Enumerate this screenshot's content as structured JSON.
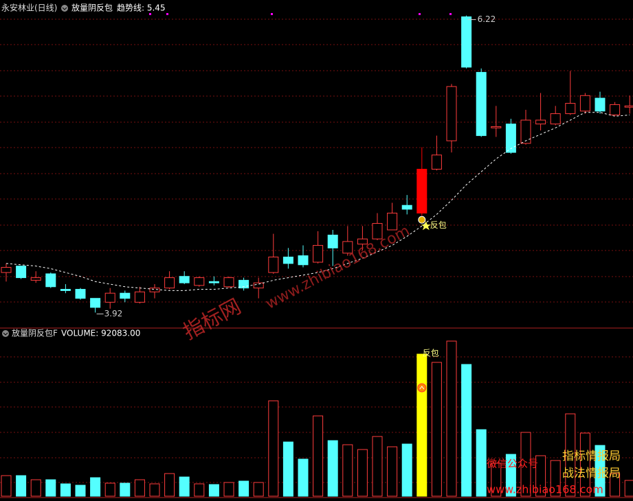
{
  "chart_data": [
    {
      "type": "candlestick",
      "title": "永安林业(日线)",
      "indicator": "放量阴反包",
      "trend_readout": "趋势线: 5.45",
      "open": [
        4.23,
        4.28,
        4.17,
        4.22,
        4.1,
        4.1,
        4.03,
        4.0,
        4.07,
        4.0,
        4.08,
        4.11,
        4.2,
        4.13,
        4.16,
        4.12,
        4.17,
        4.11,
        4.23,
        4.35,
        4.36,
        4.31,
        4.52,
        4.38,
        4.45,
        4.49,
        4.56,
        4.75,
        4.69,
        5.03,
        5.25,
        6.21,
        5.78,
        5.35,
        5.38,
        5.23,
        5.38,
        5.38,
        5.46,
        5.48,
        5.58,
        5.45,
        5.51
      ],
      "high": [
        4.3,
        4.28,
        4.24,
        4.23,
        4.14,
        4.11,
        4.03,
        4.11,
        4.09,
        4.12,
        4.14,
        4.24,
        4.24,
        4.2,
        4.2,
        4.2,
        4.19,
        4.19,
        4.53,
        4.42,
        4.44,
        4.55,
        4.56,
        4.59,
        4.59,
        4.69,
        4.77,
        4.83,
        5.2,
        5.29,
        5.69,
        6.22,
        5.81,
        5.52,
        5.42,
        5.49,
        5.62,
        5.52,
        5.79,
        5.62,
        5.63,
        5.55,
        5.6
      ],
      "low": [
        4.16,
        4.18,
        4.15,
        4.11,
        4.07,
        4.02,
        3.92,
        3.95,
        4.0,
        3.99,
        4.03,
        4.1,
        4.14,
        4.12,
        4.13,
        4.11,
        4.09,
        4.03,
        4.22,
        4.26,
        4.27,
        4.3,
        4.28,
        4.36,
        4.4,
        4.48,
        4.56,
        4.68,
        4.67,
        5.02,
        5.16,
        5.81,
        5.28,
        5.28,
        5.15,
        5.22,
        5.33,
        5.37,
        5.45,
        5.46,
        5.46,
        5.44,
        5.46
      ],
      "close": [
        4.27,
        4.19,
        4.19,
        4.12,
        4.09,
        4.03,
        3.96,
        4.07,
        4.03,
        4.08,
        4.11,
        4.19,
        4.15,
        4.19,
        4.15,
        4.19,
        4.11,
        4.15,
        4.35,
        4.3,
        4.29,
        4.44,
        4.42,
        4.47,
        4.49,
        4.61,
        4.69,
        4.72,
        5.03,
        5.14,
        5.67,
        5.82,
        5.29,
        5.36,
        5.16,
        5.41,
        5.41,
        5.46,
        5.54,
        5.6,
        5.48,
        5.53,
        5.52
      ],
      "trend": [
        4.3,
        4.29,
        4.28,
        4.26,
        4.23,
        4.2,
        4.16,
        4.14,
        4.12,
        4.11,
        4.1,
        4.09,
        4.09,
        4.1,
        4.1,
        4.11,
        4.12,
        4.14,
        4.17,
        4.19,
        4.21,
        4.23,
        4.26,
        4.3,
        4.34,
        4.39,
        4.44,
        4.51,
        4.59,
        4.68,
        4.79,
        4.91,
        5.01,
        5.11,
        5.19,
        5.25,
        5.3,
        5.35,
        5.41,
        5.47,
        5.47,
        5.44,
        5.45
      ],
      "signal_label": "反包",
      "up_color": "#ff3c3c",
      "down_color": "#54ffff",
      "highlight": {
        "index": 28,
        "color": "#ff0000"
      },
      "trend_color": "#ffffff",
      "ylim": [
        3.8,
        6.34
      ]
    },
    {
      "type": "bar",
      "title": "放量阴反包F",
      "readout": "VOLUME: 92083.00",
      "values": [
        120000,
        120000,
        96000,
        96000,
        72000,
        64000,
        108000,
        76000,
        76000,
        96000,
        72000,
        132000,
        112000,
        72000,
        68000,
        80000,
        88000,
        80000,
        556000,
        316000,
        216000,
        468000,
        324000,
        300000,
        272000,
        348000,
        288000,
        304000,
        828000,
        780000,
        904000,
        768000,
        388000,
        192000,
        244000,
        372000,
        236000,
        208000,
        480000,
        368000,
        296000,
        132000,
        92083
      ],
      "signal_label": "反包",
      "highlight": {
        "index": 28,
        "color": "#ffff00"
      },
      "ylim": [
        0,
        972000
      ]
    }
  ],
  "overlay": {
    "center": "指标网",
    "diagonal_url": "www.zhibiao168.com",
    "wechat": "微信公众号",
    "brand1": "指标情报局",
    "brand2": "战法情报局",
    "url": "www.zhibiao168.com"
  }
}
